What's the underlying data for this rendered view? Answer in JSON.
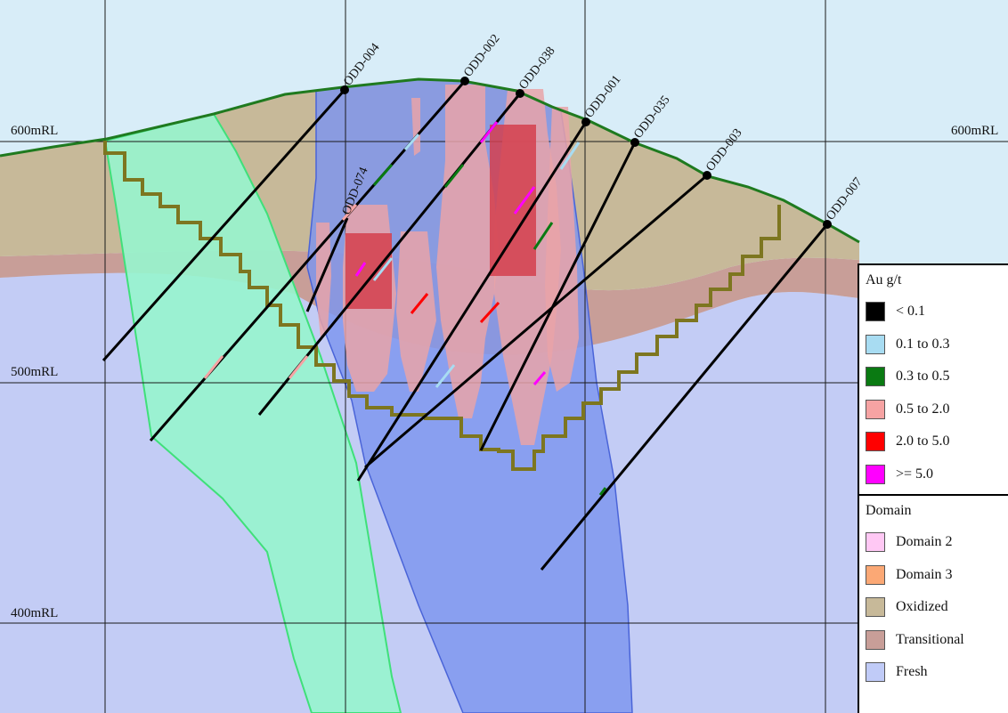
{
  "rl_labels": {
    "left_600": "600mRL",
    "right_600": "600mRL",
    "left_500": "500mRL",
    "left_400": "400mRL"
  },
  "drillholes": [
    "ODD-004",
    "ODD-002",
    "ODD-038",
    "ODD-001",
    "ODD-035",
    "ODD-003",
    "ODD-007",
    "ODD-074"
  ],
  "legend": {
    "grade_title": "Au g/t",
    "grade_items": [
      {
        "label": "< 0.1",
        "color": "#000000"
      },
      {
        "label": "0.1 to 0.3",
        "color": "#a8dcf2"
      },
      {
        "label": "0.3 to 0.5",
        "color": "#0a7a12"
      },
      {
        "label": "0.5 to 2.0",
        "color": "#f6a3a3"
      },
      {
        "label": "2.0 to 5.0",
        "color": "#ff0000"
      },
      {
        "label": ">= 5.0",
        "color": "#ff00ff"
      }
    ],
    "domain_title": "Domain",
    "domain_items": [
      {
        "label": "Domain 2",
        "color": "#ffc8f4"
      },
      {
        "label": "Domain 3",
        "color": "#fba875"
      },
      {
        "label": "Oxidized",
        "color": "#c7b999"
      },
      {
        "label": "Transitional",
        "color": "#c89e98"
      },
      {
        "label": "Fresh",
        "color": "#c0cbf7"
      }
    ]
  },
  "colors": {
    "sky": "#d8edf8",
    "oxidized": "#c7b999",
    "transitional": "#c89e98",
    "fresh": "#c3ccf5",
    "domain_blue": "#7d95ef",
    "domain_green": "#97f5ce",
    "pit_outline": "#7d7620",
    "topography": "#1f7a1f",
    "grade_block": "#e9a3a8",
    "high_grade_block": "#d4404e"
  }
}
